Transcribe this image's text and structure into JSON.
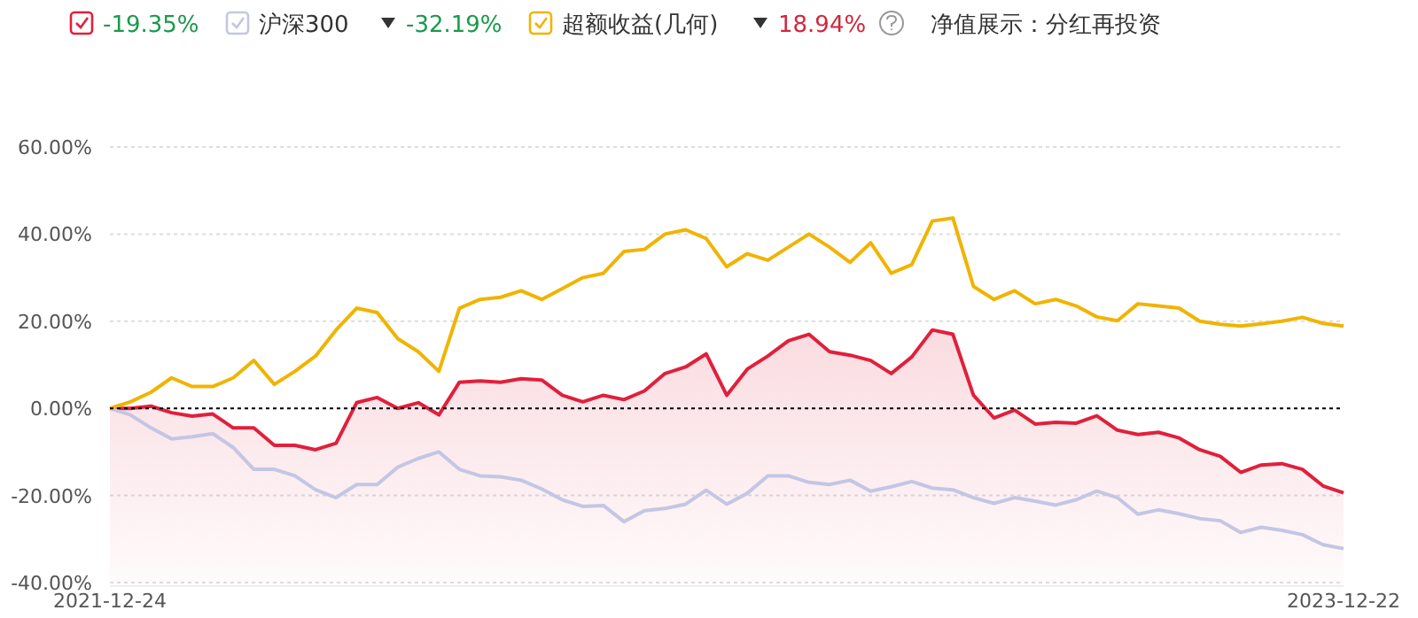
{
  "chart_data": {
    "type": "line",
    "categories": [
      "2021-12-24",
      null,
      null,
      null,
      null,
      null,
      null,
      null,
      null,
      null,
      null,
      null,
      null,
      null,
      null,
      null,
      null,
      null,
      null,
      null,
      null,
      null,
      null,
      null,
      null,
      null,
      null,
      null,
      null,
      null,
      null,
      null,
      null,
      null,
      null,
      null,
      null,
      null,
      null,
      null,
      null,
      null,
      null,
      null,
      null,
      null,
      null,
      null,
      null,
      null,
      null,
      null,
      null,
      null,
      null,
      null,
      null,
      null,
      null,
      null,
      "2023-12-22"
    ],
    "series": [
      {
        "color": "#e0203c",
        "values": [
          0,
          0,
          0.5,
          -1,
          -1.8,
          -1.3,
          -4.5,
          -4.5,
          -8.5,
          -8.5,
          -9.5,
          -8,
          1.3,
          2.5,
          0,
          1.3,
          -1.5,
          6,
          6.3,
          6,
          6.8,
          6.5,
          3,
          1.5,
          3,
          2,
          4,
          8,
          9.5,
          12.5,
          3,
          9,
          12,
          15.5,
          17,
          13,
          12.2,
          11,
          8,
          11.8,
          18,
          17,
          3,
          -2.2,
          -0.4,
          -3.6,
          -3.2,
          -3.4,
          -1.7,
          -5,
          -6,
          -5.5,
          -6.8,
          -9.5,
          -11,
          -14.7,
          -13,
          -12.7,
          -14,
          -17.8,
          -19.4
        ]
      },
      {
        "name": "沪深300",
        "color": "#c3c6e4",
        "values": [
          0,
          -1.5,
          -4.5,
          -7,
          -6.5,
          -5.8,
          -9,
          -14,
          -14,
          -15.5,
          -18.7,
          -20.5,
          -17.5,
          -17.5,
          -13.5,
          -11.5,
          -10,
          -14,
          -15.5,
          -15.7,
          -16.5,
          -18.5,
          -21,
          -22.5,
          -22.3,
          -26,
          -23.5,
          -23,
          -22,
          -18.8,
          -22,
          -19.5,
          -15.5,
          -15.5,
          -17,
          -17.5,
          -16.5,
          -19,
          -18,
          -16.8,
          -18.3,
          -18.7,
          -20.5,
          -21.8,
          -20.5,
          -21.3,
          -22.2,
          -21,
          -19,
          -20.5,
          -24.3,
          -23.3,
          -24.2,
          -25.3,
          -25.8,
          -28.5,
          -27.3,
          -28,
          -29,
          -31.3,
          -32.2
        ]
      },
      {
        "name": "超额收益(几何)",
        "color": "#f0b400",
        "values": [
          0,
          1.5,
          3.7,
          7,
          5,
          5,
          7,
          11,
          5.5,
          8.5,
          12,
          18,
          23,
          22,
          16,
          13,
          8.5,
          23,
          25,
          25.5,
          27,
          25,
          27.5,
          30,
          31,
          36,
          36.5,
          40,
          41,
          39,
          32.5,
          35.5,
          34,
          37,
          40,
          37,
          33.5,
          38,
          31,
          33,
          43,
          43.7,
          28,
          25,
          27,
          24,
          25,
          23.5,
          21,
          20.1,
          24,
          23.5,
          23,
          20,
          19.3,
          18.9,
          19.4,
          20,
          20.9,
          19.5,
          18.9
        ]
      }
    ],
    "ylim": [
      -40,
      60
    ],
    "yticks": [
      {
        "value": -40,
        "label": "-40.00%"
      },
      {
        "value": -20,
        "label": "-20.00%"
      },
      {
        "value": 0,
        "label": "0.00%"
      },
      {
        "value": 20,
        "label": "20.00%"
      },
      {
        "value": 40,
        "label": "40.00%"
      },
      {
        "value": 60,
        "label": "60.00%"
      }
    ],
    "grid": "y",
    "legend": "top",
    "ref_lines": [
      {
        "axis": "y",
        "value": 0,
        "color": "#000000",
        "line_style": "dotted"
      }
    ],
    "annotations": [
      "-19.35%",
      "-32.19%",
      "18.94%",
      "净值展示：分红再投资"
    ]
  }
}
